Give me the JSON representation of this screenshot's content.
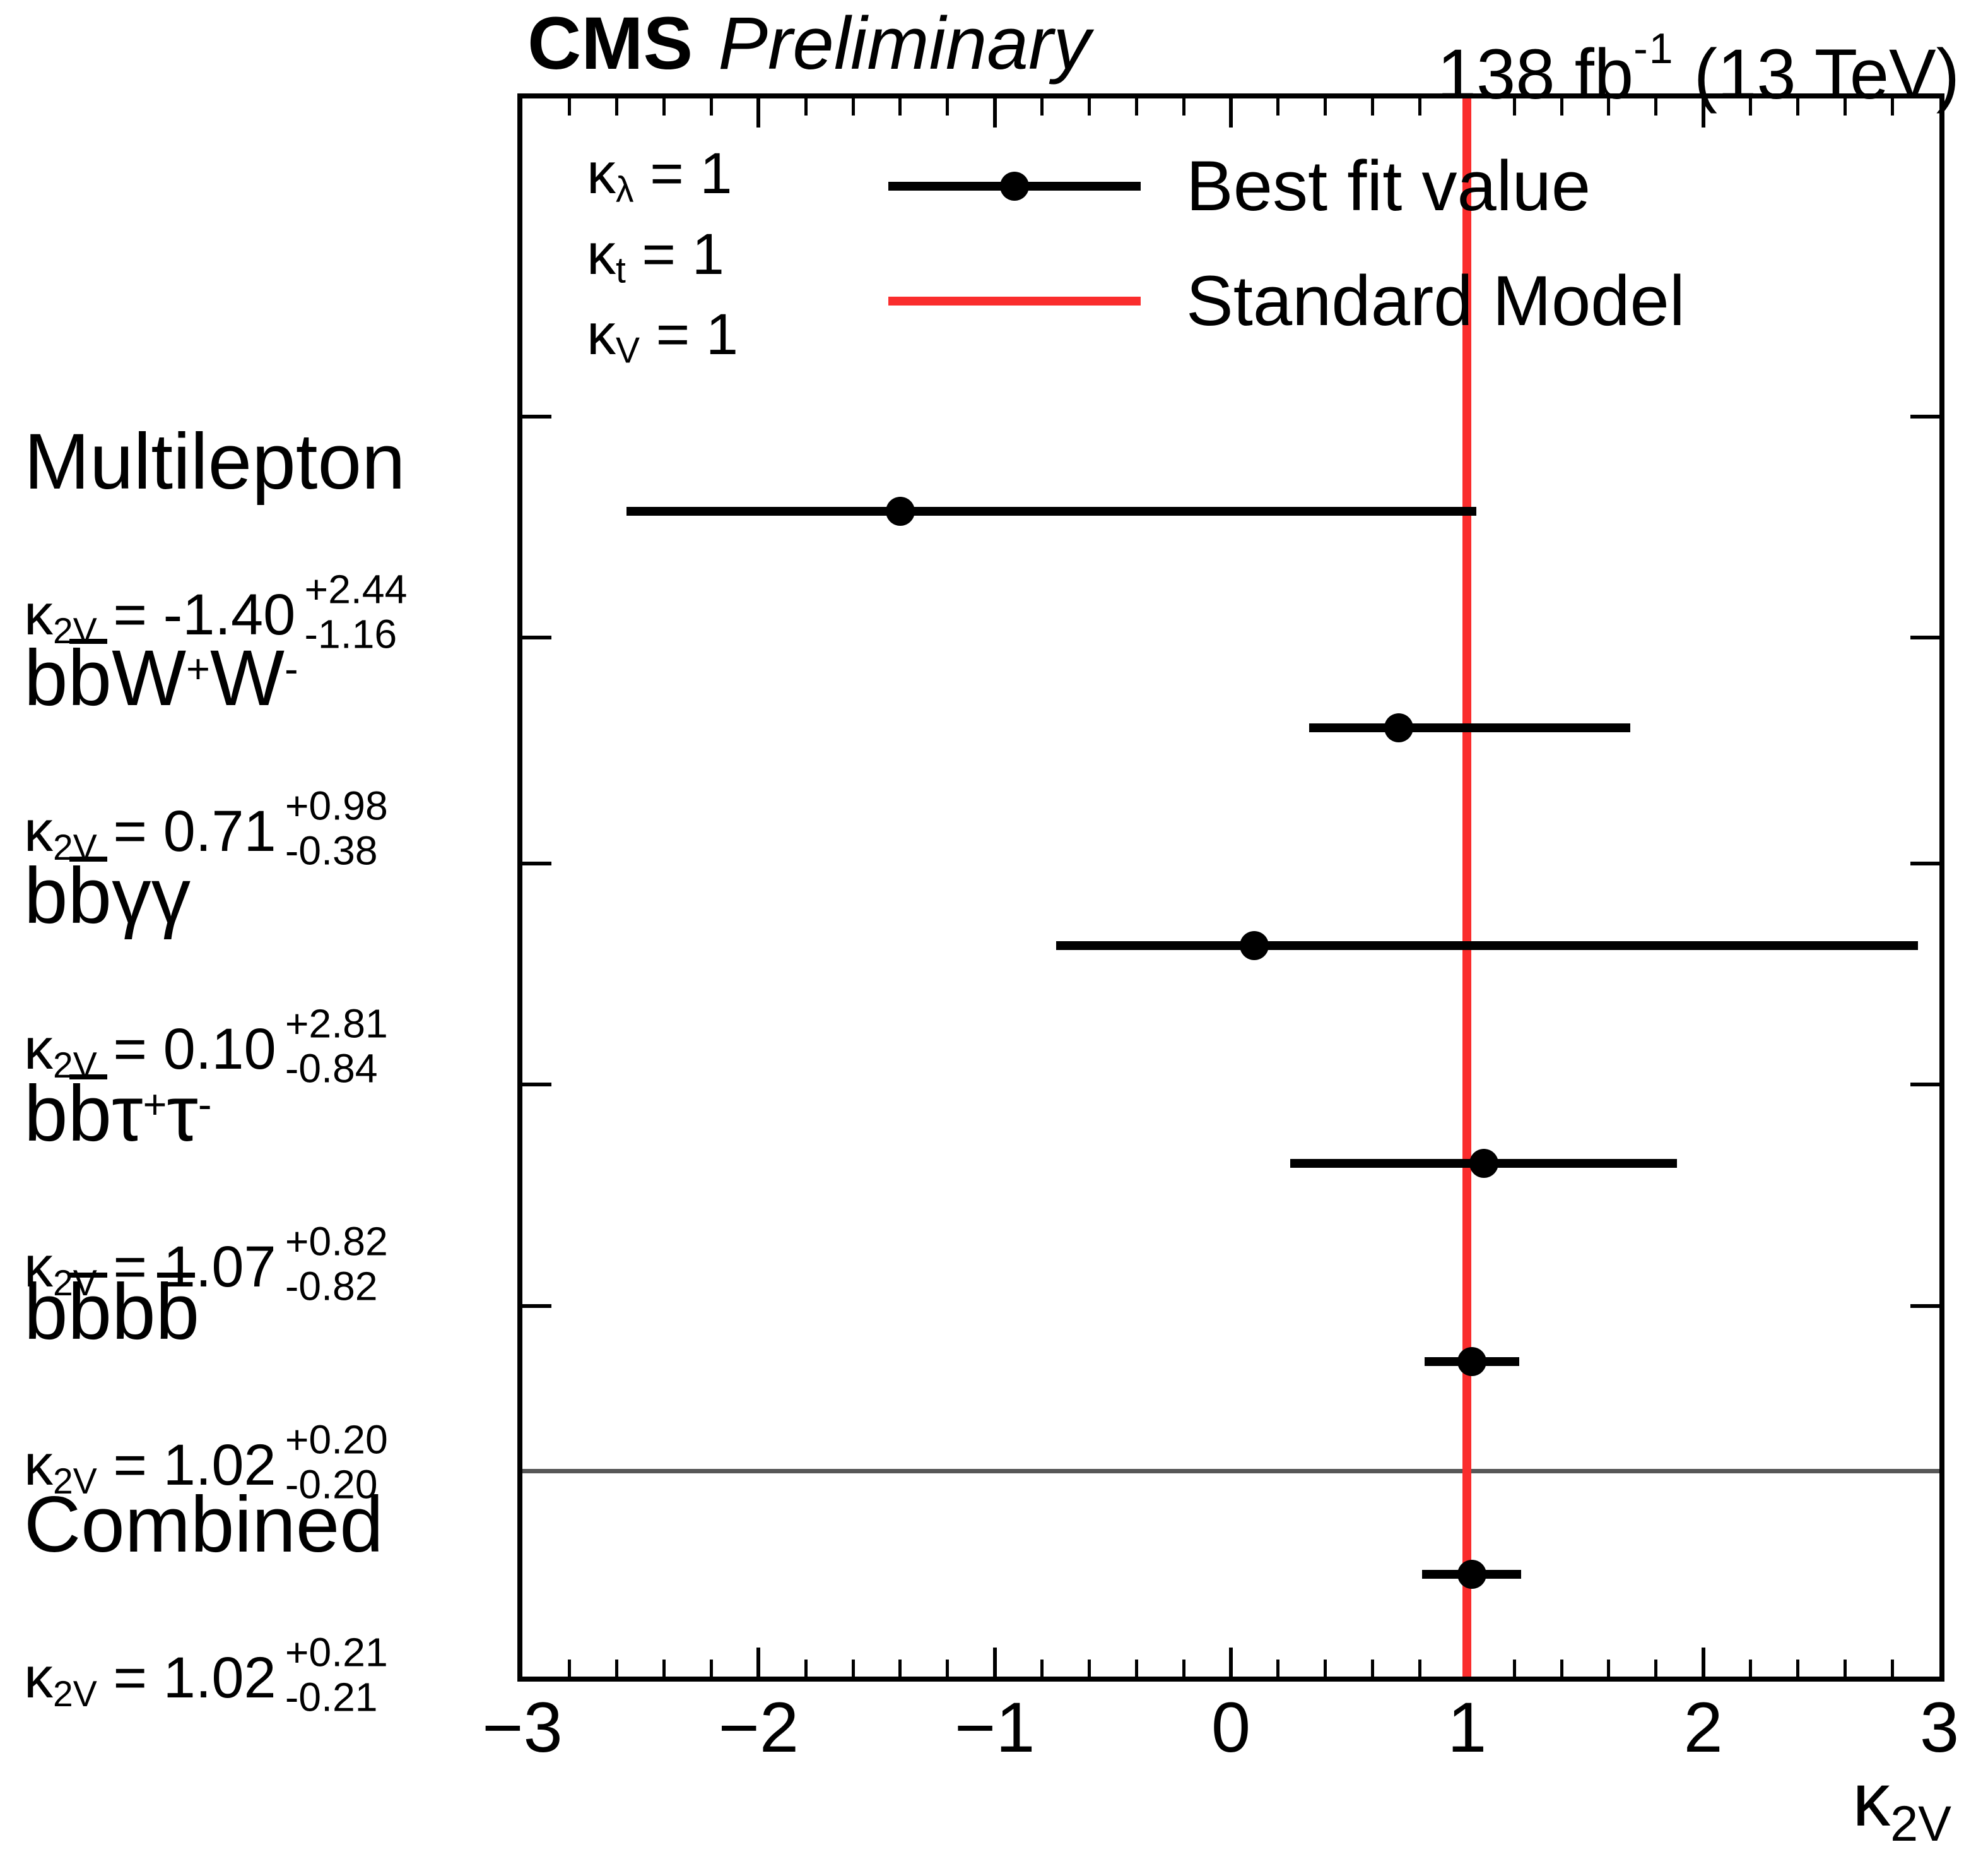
{
  "title": {
    "experiment": "CMS",
    "status": "Preliminary",
    "lumi_prefix": "138 fb",
    "lumi_sup": "-1",
    "lumi_suffix": " (13 TeV)"
  },
  "chart_data": {
    "type": "scatter",
    "subtype": "horizontal-errorbar-summary",
    "xlabel": {
      "base": "κ",
      "sub": "2V"
    },
    "xlim": [
      -3,
      3
    ],
    "x_major_ticks": [
      -3,
      -2,
      -1,
      0,
      1,
      2,
      3
    ],
    "x_tick_labels": [
      "−3",
      "−2",
      "−1",
      "0",
      "1",
      "2",
      "3"
    ],
    "x_minor_step": 0.2,
    "grid": false,
    "sm_value": 1,
    "legend": {
      "position": "top-inside",
      "conditions": [
        {
          "base": "κ",
          "sub": "λ",
          "rhs": " = 1"
        },
        {
          "base": "κ",
          "sub": "t",
          "rhs": " = 1"
        },
        {
          "base": "κ",
          "sub": "V",
          "rhs": " = 1"
        }
      ],
      "entries": [
        {
          "label": "Best fit value",
          "style": "black-line-marker"
        },
        {
          "label": "Standard Model",
          "style": "red-line"
        }
      ]
    },
    "rows": [
      {
        "name": [
          {
            "t": "Multilepton"
          }
        ],
        "param_base": "κ",
        "param_sub": "2V",
        "value": -1.4,
        "value_str": "-1.40",
        "err_up": "+2.44",
        "err_dn": "-1.16",
        "lo": -2.56,
        "hi": 1.04
      },
      {
        "name": [
          {
            "t": "b"
          },
          {
            "t": "b",
            "bar": true
          },
          {
            "t": "W"
          },
          {
            "t": "+",
            "sup": true
          },
          {
            "t": "W"
          },
          {
            "t": "-",
            "sup": true
          }
        ],
        "param_base": "κ",
        "param_sub": "2V",
        "value": 0.71,
        "value_str": "0.71",
        "err_up": "+0.98",
        "err_dn": "-0.38",
        "lo": 0.33,
        "hi": 1.69
      },
      {
        "name": [
          {
            "t": "b"
          },
          {
            "t": "b",
            "bar": true
          },
          {
            "t": "γγ"
          }
        ],
        "param_base": "κ",
        "param_sub": "2V",
        "value": 0.1,
        "value_str": "0.10",
        "err_up": "+2.81",
        "err_dn": "-0.84",
        "lo": -0.74,
        "hi": 2.91
      },
      {
        "name": [
          {
            "t": "b"
          },
          {
            "t": "b",
            "bar": true
          },
          {
            "t": "τ"
          },
          {
            "t": "+",
            "sup": true
          },
          {
            "t": "τ"
          },
          {
            "t": "-",
            "sup": true
          }
        ],
        "param_base": "κ",
        "param_sub": "2V",
        "value": 1.07,
        "value_str": "1.07",
        "err_up": "+0.82",
        "err_dn": "-0.82",
        "lo": 0.25,
        "hi": 1.89
      },
      {
        "name": [
          {
            "t": "b"
          },
          {
            "t": "b",
            "bar": true
          },
          {
            "t": "b"
          },
          {
            "t": "b",
            "bar": true
          }
        ],
        "param_base": "κ",
        "param_sub": "2V",
        "value": 1.02,
        "value_str": "1.02",
        "err_up": "+0.20",
        "err_dn": "-0.20",
        "lo": 0.82,
        "hi": 1.22
      },
      {
        "name": [
          {
            "t": "Combined"
          }
        ],
        "param_base": "κ",
        "param_sub": "2V",
        "value": 1.02,
        "value_str": "1.02",
        "err_up": "+0.21",
        "err_dn": "-0.21",
        "lo": 0.81,
        "hi": 1.23
      }
    ],
    "separator_before_last_row": true,
    "colors": {
      "best_fit": "#000000",
      "sm_line": "#fa2d2d",
      "separator": "#575757"
    }
  }
}
